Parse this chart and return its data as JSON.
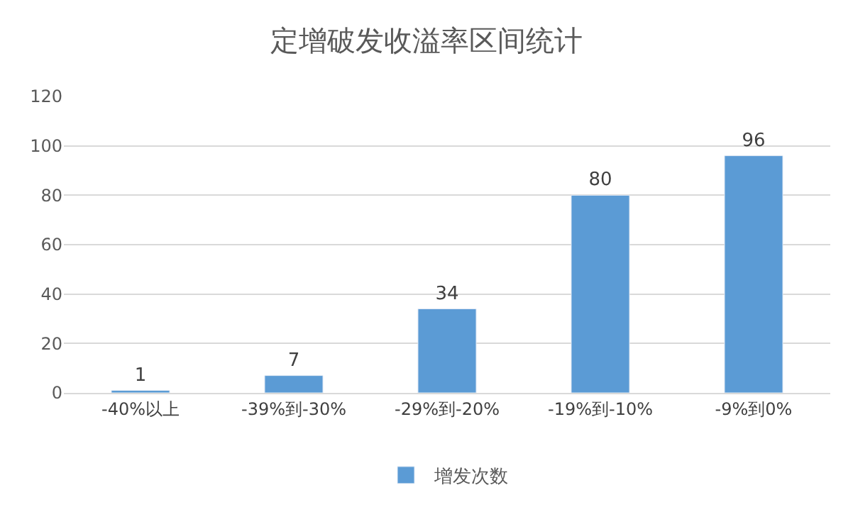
{
  "chart_data": {
    "type": "bar",
    "title": "定增破发收溢率区间统计",
    "categories": [
      "-40%以上",
      "-39%到-30%",
      "-29%到-20%",
      "-19%到-10%",
      "-9%到0%"
    ],
    "series": [
      {
        "name": "增发次数",
        "color": "#5b9bd5",
        "values": [
          1,
          7,
          34,
          80,
          96
        ]
      }
    ],
    "ylim": [
      0,
      120
    ],
    "yticks": [
      0,
      20,
      40,
      60,
      80,
      100,
      120
    ],
    "grid": "y",
    "legend": "bottom",
    "data_labels": true
  }
}
